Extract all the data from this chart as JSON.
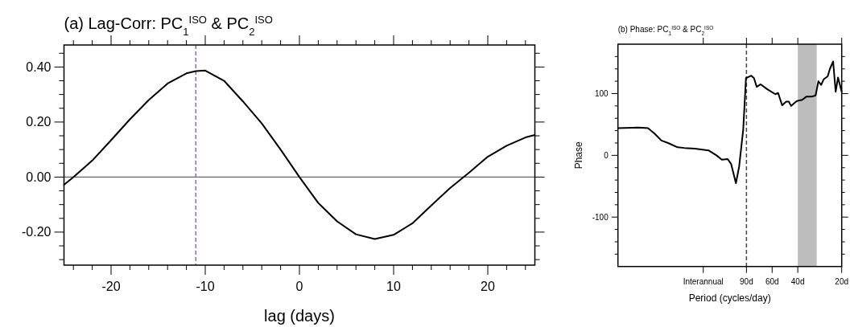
{
  "chart_data": [
    {
      "type": "line",
      "title": "(a) Lag-Corr: PC$_{1}$$^{ISO}$ & PC$_{2}$$^{ISO}$",
      "xlabel": "lag (days)",
      "xlim": [
        -25,
        25
      ],
      "ylim": [
        -0.32,
        0.48
      ],
      "xticks": [
        {
          "value": -24,
          "label": null
        },
        {
          "value": -22,
          "label": null
        },
        -20,
        {
          "value": -18,
          "label": null
        },
        {
          "value": -16,
          "label": null
        },
        {
          "value": -14,
          "label": null
        },
        {
          "value": -12,
          "label": null
        },
        -10,
        {
          "value": -8,
          "label": null
        },
        {
          "value": -6,
          "label": null
        },
        {
          "value": -4,
          "label": null
        },
        {
          "value": -2,
          "label": null
        },
        0,
        {
          "value": 2,
          "label": null
        },
        {
          "value": 4,
          "label": null
        },
        {
          "value": 6,
          "label": null
        },
        {
          "value": 8,
          "label": null
        },
        10,
        {
          "value": 12,
          "label": null
        },
        {
          "value": 14,
          "label": null
        },
        {
          "value": 16,
          "label": null
        },
        {
          "value": 18,
          "label": null
        },
        20,
        {
          "value": 22,
          "label": null
        },
        {
          "value": 24,
          "label": null
        }
      ],
      "yticks": [
        {
          "value": -0.3,
          "label": null
        },
        {
          "value": -0.25,
          "label": null
        },
        {
          "value": -0.2,
          "label": "-0.20"
        },
        {
          "value": -0.15,
          "label": null
        },
        {
          "value": -0.1,
          "label": null
        },
        {
          "value": -0.05,
          "label": null
        },
        {
          "value": 0,
          "label": "0.00"
        },
        {
          "value": 0.05,
          "label": null
        },
        {
          "value": 0.1,
          "label": null
        },
        {
          "value": 0.15,
          "label": null
        },
        {
          "value": 0.2,
          "label": "0.20"
        },
        {
          "value": 0.25,
          "label": null
        },
        {
          "value": 0.3,
          "label": null
        },
        {
          "value": 0.35,
          "label": null
        },
        {
          "value": 0.4,
          "label": "0.40"
        },
        {
          "value": 0.45,
          "label": null
        }
      ],
      "ref_lines": [
        {
          "axis": "y",
          "value": 0,
          "color": "#666666",
          "line_style": "solid"
        },
        {
          "axis": "x",
          "value": -11,
          "color": "#9a5fc0",
          "line_style": "dashed"
        }
      ],
      "series": [
        {
          "color": "#000000",
          "x": [
            -25,
            -24,
            -22,
            -20,
            -18,
            -16,
            -14,
            -12,
            -11,
            -10,
            -8,
            -6,
            -4,
            -2,
            0,
            2,
            4,
            6,
            8,
            10,
            12,
            14,
            16,
            18,
            20,
            22,
            24,
            25
          ],
          "values": [
            -0.028,
            0.0,
            0.06,
            0.134,
            0.21,
            0.28,
            0.34,
            0.377,
            0.385,
            0.387,
            0.35,
            0.275,
            0.195,
            0.1,
            0.0,
            -0.094,
            -0.161,
            -0.208,
            -0.225,
            -0.21,
            -0.168,
            -0.103,
            -0.04,
            0.016,
            0.074,
            0.114,
            0.144,
            0.153
          ]
        }
      ]
    },
    {
      "type": "line",
      "title": "(b) Phase: PC$_{1}$$^{ISO}$ & PC$_{2}$$^{ISO}$",
      "xlabel": "Period (cycles/day)",
      "ylabel": "Phase",
      "log": "x",
      "xlim": [
        685,
        20
      ],
      "ylim": [
        -180,
        180
      ],
      "xticks": [
        {
          "value": 178,
          "label": "Interannual"
        },
        {
          "value": 90,
          "label": "90d"
        },
        {
          "value": 60,
          "label": "60d"
        },
        {
          "value": 40,
          "label": "40d"
        },
        {
          "value": 20,
          "label": "20d"
        }
      ],
      "yticks": [
        {
          "value": -160,
          "label": null
        },
        {
          "value": -140,
          "label": null
        },
        {
          "value": -120,
          "label": null
        },
        -100,
        {
          "value": -80,
          "label": null
        },
        {
          "value": -60,
          "label": null
        },
        {
          "value": -40,
          "label": null
        },
        {
          "value": -20,
          "label": null
        },
        0,
        {
          "value": 20,
          "label": null
        },
        {
          "value": 40,
          "label": null
        },
        {
          "value": 60,
          "label": null
        },
        {
          "value": 80,
          "label": null
        },
        100,
        {
          "value": 120,
          "label": null
        },
        {
          "value": 140,
          "label": null
        },
        {
          "value": 160,
          "label": null
        }
      ],
      "ref_lines": [
        {
          "axis": "x",
          "value": 90,
          "color": "#444444",
          "line_style": "dashed"
        }
      ],
      "bands": [
        {
          "axis": "x",
          "from": 40,
          "to": 29.7,
          "color": "#bdbdbd"
        }
      ],
      "series": [
        {
          "color": "#000000",
          "x": [
            685,
            495,
            426,
            383,
            345,
            310,
            267,
            240,
            203,
            164,
            144.5,
            132.8,
            121,
            114.7,
            106.3,
            101,
            94.7,
            90.7,
            83.4,
            79.9,
            76.6,
            71.9,
            64.7,
            57,
            54.6,
            51.2,
            48.1,
            46.1,
            44.5,
            40.6,
            37.3,
            35,
            32.2,
            30.2,
            28.9,
            27.7,
            26.6,
            24.95,
            24.1,
            22.9,
            22,
            21.2,
            20
          ],
          "values": [
            44,
            45,
            44,
            35,
            24,
            20,
            13,
            12,
            11,
            8,
            0,
            -7,
            -6,
            -14,
            -45,
            -18,
            42,
            125,
            129,
            125,
            111,
            115,
            107,
            99,
            101,
            81,
            87,
            87,
            80,
            88,
            90,
            95,
            95,
            97,
            120,
            114,
            123,
            128,
            140,
            152,
            103,
            126,
            103
          ]
        }
      ]
    }
  ]
}
